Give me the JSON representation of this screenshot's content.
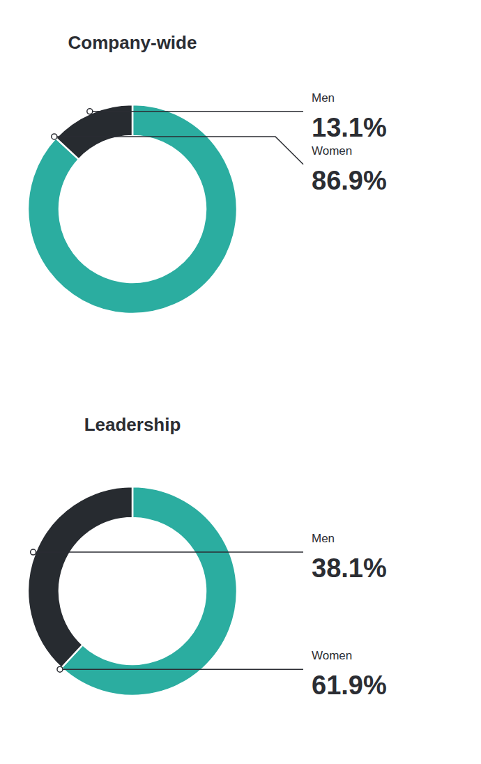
{
  "chart_data": [
    {
      "type": "donut",
      "title": "Company-wide",
      "categories": [
        "Women",
        "Men"
      ],
      "values": [
        86.9,
        13.1
      ],
      "value_labels": [
        "86.9%",
        "13.1%"
      ],
      "colors": [
        "#2BADA0",
        "#272B30"
      ],
      "data_labels": true
    },
    {
      "type": "donut",
      "title": "Leadership",
      "categories": [
        "Women",
        "Men"
      ],
      "values": [
        61.9,
        38.1
      ],
      "value_labels": [
        "61.9%",
        "38.1%"
      ],
      "colors": [
        "#2BADA0",
        "#272B30"
      ],
      "data_labels": true
    }
  ]
}
